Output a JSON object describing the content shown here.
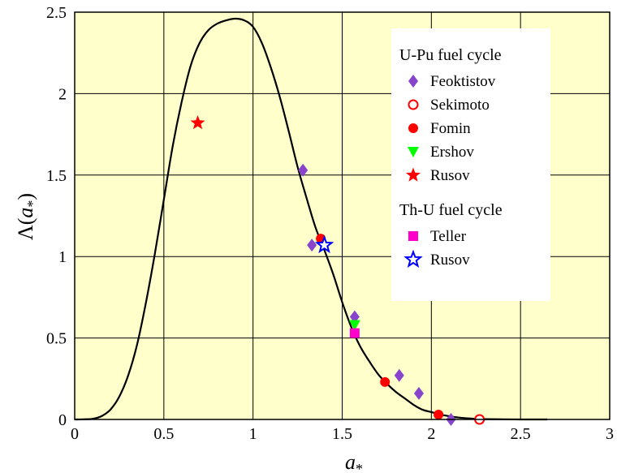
{
  "chart_data": {
    "type": "scatter",
    "xlabel_base": "a",
    "xlabel_sub": "*",
    "ylabel_prefix": "Λ(",
    "ylabel_var": "a",
    "ylabel_sub": "*",
    "ylabel_suffix": ")",
    "xlim": [
      0,
      3
    ],
    "ylim": [
      0,
      2.5
    ],
    "xticks": [
      0,
      0.5,
      1,
      1.5,
      2,
      2.5,
      3
    ],
    "xtick_labels": [
      "0",
      "0.5",
      "1",
      "1.5",
      "2",
      "2.5",
      "3"
    ],
    "yticks": [
      0,
      0.5,
      1,
      1.5,
      2,
      2.5
    ],
    "ytick_labels": [
      "0",
      "0.5",
      "1",
      "1.5",
      "2",
      "2.5"
    ],
    "grid": true,
    "background": "#ffffcc",
    "curve": {
      "color": "#000000",
      "x": [
        0,
        0.05,
        0.1,
        0.15,
        0.2,
        0.25,
        0.3,
        0.35,
        0.4,
        0.45,
        0.5,
        0.55,
        0.6,
        0.65,
        0.7,
        0.75,
        0.8,
        0.85,
        0.9,
        0.95,
        1.0,
        1.05,
        1.1,
        1.15,
        1.2,
        1.25,
        1.3,
        1.35,
        1.4,
        1.45,
        1.5,
        1.55,
        1.6,
        1.65,
        1.7,
        1.75,
        1.8,
        1.85,
        1.9,
        1.95,
        2.0,
        2.05,
        2.1,
        2.15,
        2.2,
        2.25,
        2.3,
        2.4,
        2.5,
        2.6,
        2.65
      ],
      "y": [
        0,
        0.001,
        0.004,
        0.02,
        0.06,
        0.14,
        0.27,
        0.46,
        0.72,
        1.02,
        1.35,
        1.68,
        1.95,
        2.17,
        2.31,
        2.39,
        2.43,
        2.45,
        2.46,
        2.45,
        2.41,
        2.31,
        2.16,
        1.98,
        1.77,
        1.55,
        1.36,
        1.18,
        1.04,
        0.89,
        0.72,
        0.57,
        0.45,
        0.36,
        0.28,
        0.22,
        0.17,
        0.13,
        0.09,
        0.06,
        0.045,
        0.03,
        0.02,
        0.012,
        0.007,
        0.004,
        0.002,
        0.001,
        0,
        0,
        0
      ]
    },
    "groups": [
      {
        "heading": "U-Pu fuel cycle",
        "series": [
          {
            "name": "Feoktistov",
            "marker": "diamond",
            "color": "#8844cc",
            "filled": true,
            "points": [
              [
                1.28,
                1.53
              ],
              [
                1.33,
                1.07
              ],
              [
                1.57,
                0.63
              ],
              [
                1.82,
                0.27
              ],
              [
                1.93,
                0.16
              ],
              [
                2.11,
                0.0
              ]
            ]
          },
          {
            "name": "Sekimoto",
            "marker": "circle",
            "color": "#ff0000",
            "filled": false,
            "points": [
              [
                2.27,
                0.0
              ]
            ]
          },
          {
            "name": "Fomin",
            "marker": "circle",
            "color": "#ff0000",
            "filled": true,
            "points": [
              [
                1.38,
                1.11
              ],
              [
                1.74,
                0.23
              ],
              [
                2.04,
                0.03
              ]
            ]
          },
          {
            "name": "Ershov",
            "marker": "triangle-down",
            "color": "#00ff00",
            "filled": true,
            "points": [
              [
                1.57,
                0.58
              ]
            ]
          },
          {
            "name": "Rusov",
            "marker": "star",
            "color": "#ff0000",
            "filled": true,
            "points": [
              [
                0.69,
                1.82
              ]
            ]
          }
        ]
      },
      {
        "heading": "Th-U fuel cycle",
        "series": [
          {
            "name": "Teller",
            "marker": "square",
            "color": "#ff00cc",
            "filled": true,
            "points": [
              [
                1.57,
                0.53
              ]
            ]
          },
          {
            "name": "Rusov",
            "marker": "star",
            "color": "#0000ff",
            "filled": false,
            "points": [
              [
                1.4,
                1.07
              ]
            ]
          }
        ]
      }
    ]
  }
}
